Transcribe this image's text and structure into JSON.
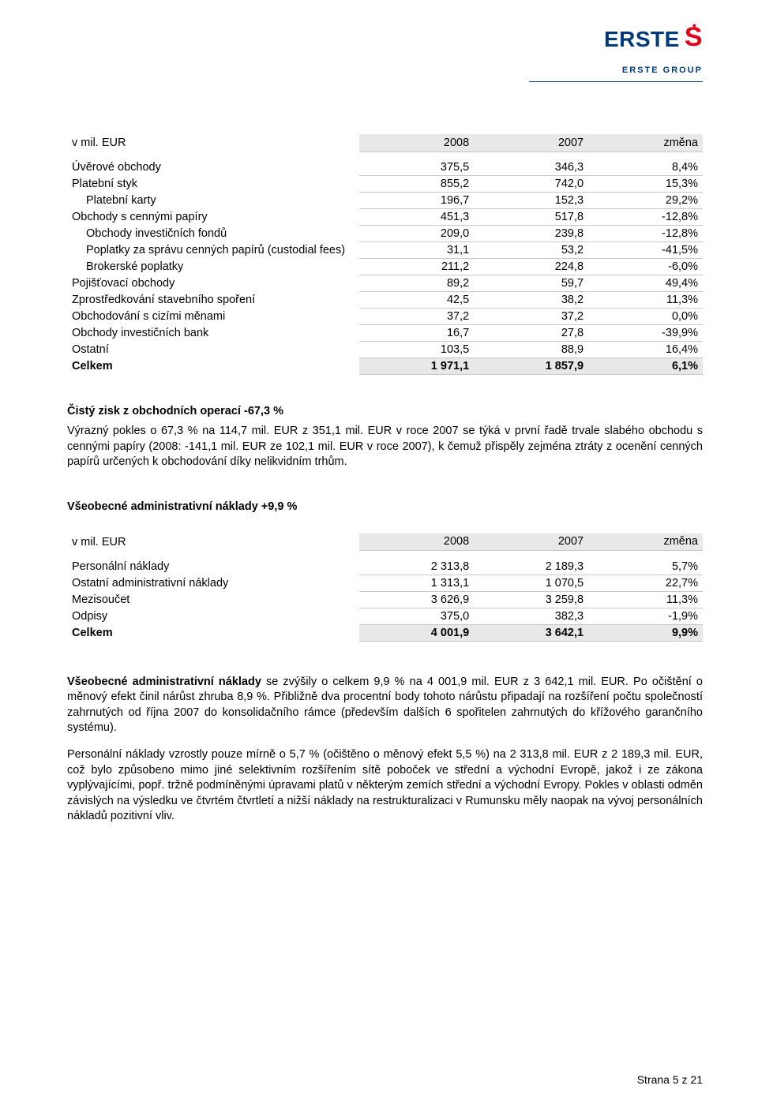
{
  "logo": {
    "brand": "ERSTE",
    "group": "ERSTE GROUP"
  },
  "table1": {
    "header": {
      "unit": "v mil. EUR",
      "c1": "2008",
      "c2": "2007",
      "c3": "změna"
    },
    "rows": [
      {
        "l": "Úvěrové obchody",
        "a": "375,5",
        "b": "346,3",
        "c": "8,4%",
        "indent": false
      },
      {
        "l": "Platební styk",
        "a": "855,2",
        "b": "742,0",
        "c": "15,3%",
        "indent": false
      },
      {
        "l": "Platební karty",
        "a": "196,7",
        "b": "152,3",
        "c": "29,2%",
        "indent": true
      },
      {
        "l": "Obchody s cennými papíry",
        "a": "451,3",
        "b": "517,8",
        "c": "-12,8%",
        "indent": false
      },
      {
        "l": "Obchody investičních fondů",
        "a": "209,0",
        "b": "239,8",
        "c": "-12,8%",
        "indent": true
      },
      {
        "l": "Poplatky za správu cenných papírů (custodial fees)",
        "a": "31,1",
        "b": "53,2",
        "c": "-41,5%",
        "indent": true
      },
      {
        "l": "Brokerské poplatky",
        "a": "211,2",
        "b": "224,8",
        "c": "-6,0%",
        "indent": true
      },
      {
        "l": "Pojišťovací obchody",
        "a": "89,2",
        "b": "59,7",
        "c": "49,4%",
        "indent": false
      },
      {
        "l": "Zprostředkování stavebního spoření",
        "a": "42,5",
        "b": "38,2",
        "c": "11,3%",
        "indent": false
      },
      {
        "l": "Obchodování s cizími měnami",
        "a": "37,2",
        "b": "37,2",
        "c": "0,0%",
        "indent": false
      },
      {
        "l": "Obchody investičních bank",
        "a": "16,7",
        "b": "27,8",
        "c": "-39,9%",
        "indent": false
      },
      {
        "l": "Ostatní",
        "a": "103,5",
        "b": "88,9",
        "c": "16,4%",
        "indent": false
      },
      {
        "l": "Celkem",
        "a": "1 971,1",
        "b": "1 857,9",
        "c": "6,1%",
        "bold": true
      }
    ]
  },
  "section1": {
    "heading": "Čistý zisk z obchodních operací -67,3 %",
    "para": "Výrazný pokles o 67,3 % na 114,7 mil. EUR z 351,1 mil. EUR v roce 2007 se týká v první řadě trvale slabého obchodu s cennými papíry (2008: -141,1 mil. EUR ze 102,1 mil. EUR v roce 2007), k čemuž přispěly zejména ztráty z ocenění cenných papírů určených k obchodování díky nelikvidním trhům."
  },
  "section2": {
    "heading": "Všeobecné administrativní náklady +9,9 %"
  },
  "table2": {
    "header": {
      "unit": "v mil. EUR",
      "c1": "2008",
      "c2": "2007",
      "c3": "změna"
    },
    "rows": [
      {
        "l": "Personální náklady",
        "a": "2 313,8",
        "b": "2 189,3",
        "c": "5,7%"
      },
      {
        "l": "Ostatní administrativní náklady",
        "a": "1 313,1",
        "b": "1 070,5",
        "c": "22,7%"
      },
      {
        "l": "Mezisoučet",
        "a": "3 626,9",
        "b": "3 259,8",
        "c": "11,3%"
      },
      {
        "l": "Odpisy",
        "a": "375,0",
        "b": "382,3",
        "c": "-1,9%"
      },
      {
        "l": "Celkem",
        "a": "4 001,9",
        "b": "3 642,1",
        "c": "9,9%",
        "bold": true
      }
    ]
  },
  "para2": {
    "runA_bold": "Všeobecné administrativní náklady",
    "runA_rest": " se zvýšily o celkem 9,9 % na 4 001,9 mil. EUR z 3 642,1 mil. EUR. Po očištění o měnový efekt činil nárůst zhruba 8,9 %. Přibližně dva procentní body tohoto nárůstu připadají na rozšíření počtu společností zahrnutých od října 2007 do konsolidačního rámce (především dalších 6 spořitelen zahrnutých do křížového garančního systému)."
  },
  "para3": "Personální náklady vzrostly pouze mírně o 5,7 % (očištěno o měnový efekt 5,5 %) na 2 313,8 mil. EUR z 2 189,3 mil. EUR, což bylo způsobeno mimo jiné selektivním rozšířením sítě poboček ve střední a východní Evropě, jakož i ze zákona vyplývajícími, popř. tržně podmíněnými úpravami platů v některým zemích střední a východní Evropy. Pokles v oblasti odměn závislých na výsledku ve čtvrtém čtvrtletí a nižší náklady na restrukturalizaci v Rumunsku měly naopak na vývoj personálních nákladů pozitivní vliv.",
  "footer": "Strana 5 z 21"
}
